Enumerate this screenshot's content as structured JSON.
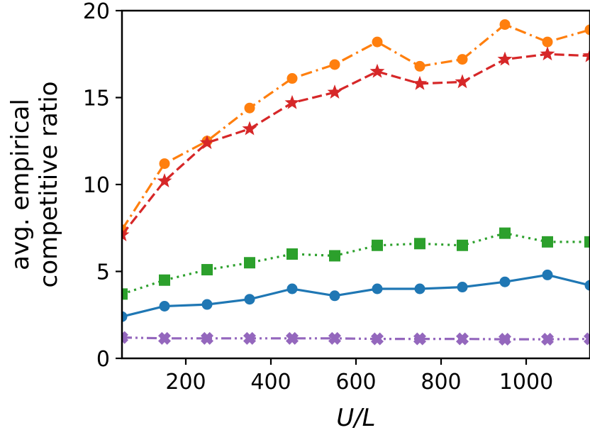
{
  "chart_data": {
    "type": "line",
    "title": "",
    "xlabel": "U/L",
    "ylabel_lines": [
      "avg. empirical",
      "competitive ratio"
    ],
    "xlim": [
      50,
      1150
    ],
    "ylim": [
      0,
      20
    ],
    "xticks": [
      200,
      400,
      600,
      800,
      1000
    ],
    "yticks": [
      0,
      5,
      10,
      15,
      20
    ],
    "grid": false,
    "x": [
      50,
      150,
      250,
      350,
      450,
      550,
      650,
      750,
      850,
      950,
      1050,
      1150
    ],
    "series": [
      {
        "name": "series-orange",
        "color": "#ff7f0e",
        "linestyle": "dashdot",
        "marker": "circle",
        "values": [
          7.4,
          11.2,
          12.5,
          14.4,
          16.1,
          16.9,
          18.2,
          16.8,
          17.2,
          19.2,
          18.2,
          18.9
        ]
      },
      {
        "name": "series-red",
        "color": "#d62728",
        "linestyle": "dashed",
        "marker": "star",
        "values": [
          7.1,
          10.2,
          12.4,
          13.2,
          14.7,
          15.3,
          16.5,
          15.8,
          15.9,
          17.2,
          17.5,
          17.4
        ]
      },
      {
        "name": "series-green",
        "color": "#2ca02c",
        "linestyle": "dotted",
        "marker": "square",
        "values": [
          3.7,
          4.5,
          5.1,
          5.5,
          6.0,
          5.9,
          6.5,
          6.6,
          6.5,
          7.2,
          6.7,
          6.7
        ]
      },
      {
        "name": "series-blue",
        "color": "#1f77b4",
        "linestyle": "solid",
        "marker": "circle",
        "values": [
          2.4,
          3.0,
          3.1,
          3.4,
          4.0,
          3.6,
          4.0,
          4.0,
          4.1,
          4.4,
          4.8,
          4.2
        ]
      },
      {
        "name": "series-purple",
        "color": "#9467bd",
        "linestyle": "dashdotdot",
        "marker": "x-filled",
        "values": [
          1.2,
          1.15,
          1.15,
          1.15,
          1.15,
          1.15,
          1.12,
          1.12,
          1.12,
          1.1,
          1.1,
          1.12
        ]
      }
    ]
  }
}
